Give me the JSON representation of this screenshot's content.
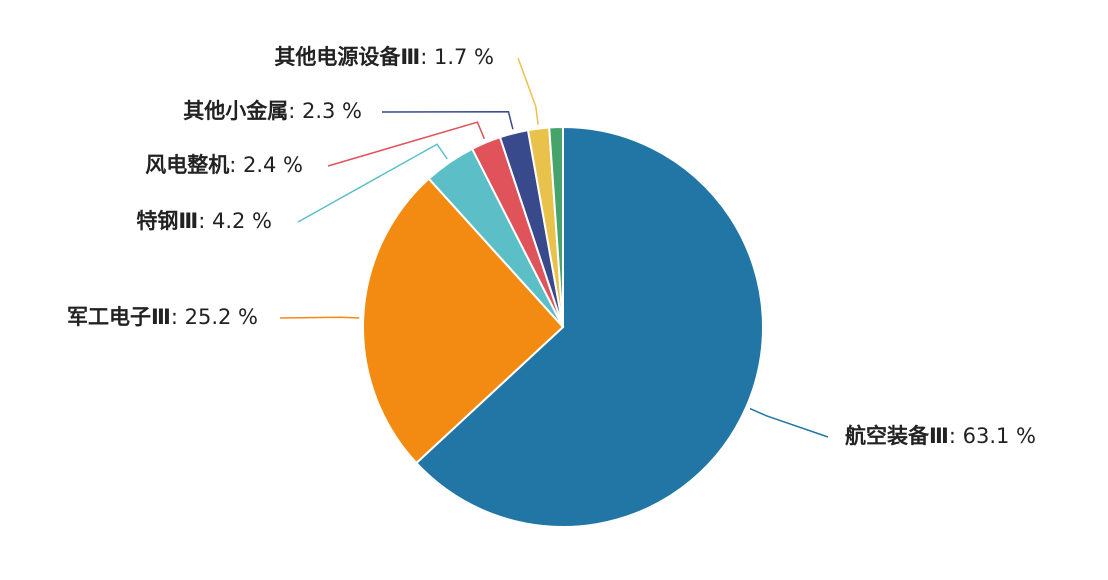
{
  "chart_data": {
    "type": "pie",
    "categories": [
      "航空装备Ⅲ",
      "军工电子Ⅲ",
      "特钢Ⅲ",
      "风电整机",
      "其他小金属",
      "其他电源设备Ⅲ",
      null
    ],
    "values": [
      63.1,
      25.2,
      4.2,
      2.4,
      2.3,
      1.7,
      1.1
    ],
    "value_labels": [
      ": 63.1 %",
      ": 25.2 %",
      ": 4.2 %",
      ": 2.4 %",
      ": 2.3 %",
      ": 1.7 %",
      null
    ],
    "colors": [
      "#2176a5",
      "#f38b13",
      "#5cbfc7",
      "#e0535a",
      "#394a8c",
      "#e9c24b",
      "#46a36c"
    ]
  }
}
